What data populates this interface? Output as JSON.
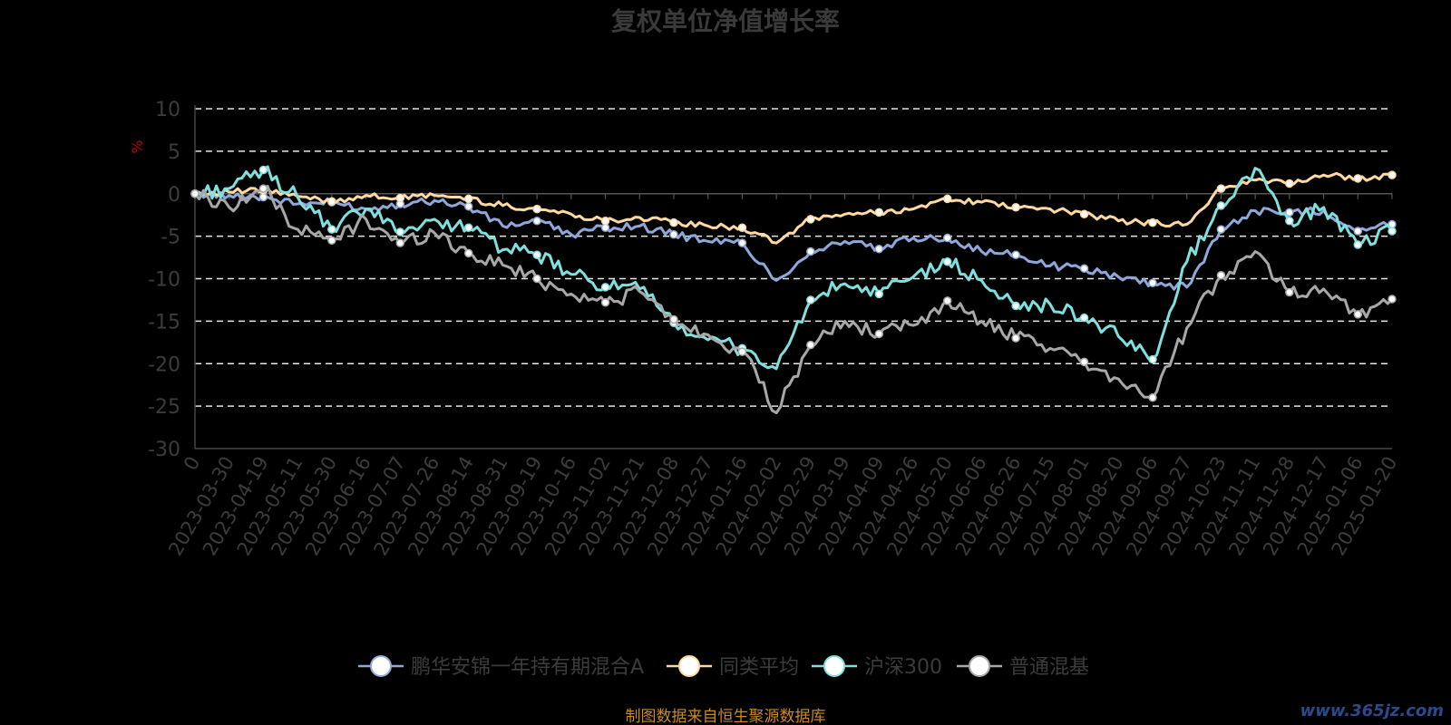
{
  "chart_data": {
    "type": "line",
    "title": "复权单位净值增长率",
    "unit_label": "%",
    "ylim": [
      -30,
      10
    ],
    "yticks": [
      10,
      5,
      0,
      -5,
      -10,
      -15,
      -20,
      -25,
      -30
    ],
    "grid": true,
    "legend_position": "bottom-center",
    "x": [
      "0",
      "2023-03-30",
      "2023-04-19",
      "2023-05-11",
      "2023-05-30",
      "2023-06-16",
      "2023-07-07",
      "2023-07-26",
      "2023-08-14",
      "2023-08-31",
      "2023-09-19",
      "2023-10-16",
      "2023-11-02",
      "2023-11-21",
      "2023-12-08",
      "2023-12-27",
      "2024-01-16",
      "2024-02-02",
      "2024-02-29",
      "2024-03-19",
      "2024-04-09",
      "2024-04-26",
      "2024-05-20",
      "2024-06-06",
      "2024-06-26",
      "2024-07-15",
      "2024-08-01",
      "2024-08-20",
      "2024-09-06",
      "2024-09-27",
      "2024-10-23",
      "2024-11-11",
      "2024-11-28",
      "2024-12-17",
      "2025-01-06",
      "2025-01-20"
    ],
    "series": [
      {
        "name": "鹏华安锦一年持有期混合A",
        "color": "#8fa8d9",
        "values": [
          0,
          -0.2,
          -0.4,
          -1.2,
          -1.0,
          -1.8,
          -1.2,
          -0.8,
          -1.5,
          -3.8,
          -3.2,
          -4.8,
          -4.0,
          -3.8,
          -4.8,
          -5.6,
          -5.8,
          -10.2,
          -6.8,
          -5.6,
          -6.5,
          -5.2,
          -5.2,
          -6.8,
          -7.2,
          -8.5,
          -8.8,
          -9.8,
          -10.5,
          -11.0,
          -4.2,
          -2.0,
          -2.2,
          -2.0,
          -4.4,
          -3.6
        ]
      },
      {
        "name": "同类平均",
        "color": "#ffd9a0",
        "values": [
          0,
          0.2,
          0.4,
          -0.3,
          -0.9,
          -0.2,
          -0.5,
          -0.2,
          -0.6,
          -1.4,
          -1.8,
          -2.4,
          -3.2,
          -2.8,
          -3.4,
          -3.8,
          -4.0,
          -5.8,
          -3.0,
          -2.4,
          -2.2,
          -1.8,
          -0.6,
          -1.0,
          -1.6,
          -1.8,
          -2.4,
          -3.2,
          -3.4,
          -3.6,
          0.6,
          1.6,
          1.2,
          2.2,
          1.8,
          2.2
        ]
      },
      {
        "name": "沪深300",
        "color": "#7fe0de",
        "values": [
          0,
          0.6,
          2.8,
          -0.4,
          -4.2,
          -1.8,
          -4.5,
          -3.0,
          -4.0,
          -6.6,
          -7.2,
          -9.5,
          -11.0,
          -11.2,
          -15.2,
          -17.2,
          -18.2,
          -20.6,
          -12.5,
          -10.6,
          -11.8,
          -9.8,
          -8.0,
          -10.2,
          -13.2,
          -13.0,
          -14.6,
          -16.8,
          -19.5,
          -8.0,
          -1.4,
          3.0,
          -3.2,
          -1.6,
          -6.0,
          -4.4
        ]
      },
      {
        "name": "普通混基",
        "color": "#a8a8a8",
        "values": [
          0,
          -1.6,
          0.6,
          -4.2,
          -5.5,
          -3.0,
          -5.8,
          -4.6,
          -7.0,
          -8.4,
          -10.0,
          -11.8,
          -12.8,
          -11.5,
          -14.8,
          -16.6,
          -18.6,
          -25.8,
          -17.8,
          -15.0,
          -16.5,
          -15.5,
          -12.6,
          -15.0,
          -17.0,
          -18.2,
          -19.8,
          -21.8,
          -24.0,
          -15.8,
          -9.6,
          -6.8,
          -11.6,
          -11.2,
          -14.2,
          -12.4
        ]
      }
    ],
    "source_note": "制图数据来自恒生聚源数据库",
    "watermark": "www.365jz.com"
  }
}
